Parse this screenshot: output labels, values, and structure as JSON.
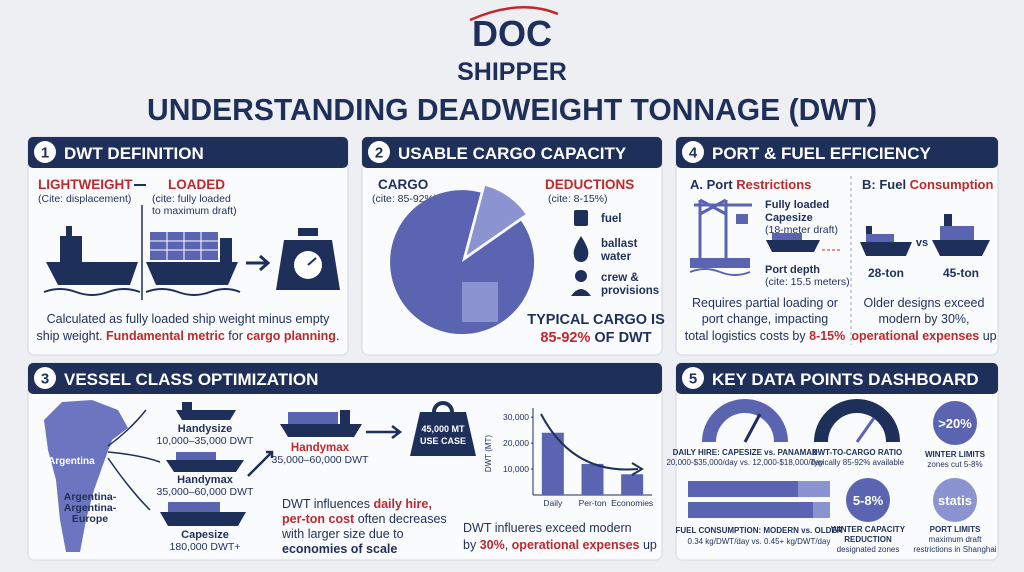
{
  "logo": {
    "top": "DOC",
    "bottom": "SHIPPER"
  },
  "title": "UNDERSTANDING DEADWEIGHT TONNAGE (DWT)",
  "panel1": {
    "number": "1",
    "title": "DWT DEFINITION",
    "lightweight": "LIGHTWEIGHT",
    "lightweight_cite": "(Cite: displacement)",
    "loaded": "LOADED",
    "loaded_cite": [
      "(cite: fully loaded",
      "to maximum draft)"
    ],
    "text": [
      "Calculated as fully loaded ship weight minus empty",
      "ship weight. ",
      "Fundamental metric",
      " for ",
      "cargo planning",
      "."
    ]
  },
  "panel2": {
    "number": "2",
    "title": "USABLE CARGO CAPACITY",
    "cargo": "CARGO",
    "cargo_cite": "(cite: 85-92%)",
    "deductions": "DEDUCTIONS",
    "deductions_cite": "(cite: 8-15%)",
    "items": [
      [
        "fuel"
      ],
      [
        "ballast",
        "water"
      ],
      [
        "crew &",
        "provisions"
      ]
    ],
    "typical": [
      "TYPICAL CARGO IS",
      "85-92%",
      " OF DWT"
    ]
  },
  "panel3": {
    "number": "3",
    "title": "VESSEL CLASS OPTIMIZATION",
    "map_label": "Argentina",
    "route": [
      "Argentina-",
      "Argentina-",
      "Europe"
    ],
    "classes": [
      {
        "name": "Handysize",
        "range": "10,000–35,000 DWT"
      },
      {
        "name": "Handymax",
        "range": "35,000–60,000 DWT"
      },
      {
        "name": "Capesize",
        "range": "180,000 DWT+"
      }
    ],
    "featured": {
      "name": "Handymax",
      "range": "35,000–60,000 DWT"
    },
    "weight": [
      "45,000 MT",
      "USE CASE"
    ],
    "text": [
      "DWT influences ",
      "daily hire,",
      "per-ton cost",
      " often decreases",
      "with larger size due to",
      "economies of scale"
    ],
    "chart": {
      "type": "bar",
      "ylabel": "DWT (MT)",
      "categories": [
        "Daily",
        "Per-ton",
        "Economies"
      ],
      "values": [
        24000,
        12000,
        8000
      ],
      "ylim": [
        0,
        32000
      ],
      "yticks": [
        {
          "value": 10000,
          "label": "10,000"
        },
        {
          "value": 20000,
          "label": "20,000"
        },
        {
          "value": 30000,
          "label": "30,000"
        }
      ],
      "color": "#5a64b0"
    },
    "bottom": [
      "DWT influeres exceed modern",
      "by ",
      "30%",
      ", ",
      "operational expenses",
      " up"
    ]
  },
  "panel4": {
    "number": "4",
    "title": "PORT & FUEL EFFICIENCY",
    "a": [
      "A. Port ",
      "Restrictions"
    ],
    "capesize": [
      "Fully loaded",
      "Capesize",
      "(18-meter draft)"
    ],
    "port_depth": [
      "Port depth",
      "(cite: 15.5 meters)"
    ],
    "a_text": [
      "Requires partial loading or",
      "port change, impacting",
      "total logistics costs by ",
      "8-15%"
    ],
    "b": [
      "B: Fuel ",
      "Consumption"
    ],
    "vs": "vs",
    "ships": [
      "28-ton",
      "45-ton"
    ],
    "b_text": [
      "Older designs exceed",
      "modern by 30%,",
      "operational expenses",
      " up"
    ]
  },
  "panel5": {
    "number": "5",
    "title": "KEY DATA POINTS DASHBOARD",
    "hire": [
      "DAILY HIRE: CAPESIZE vs. PANAMAX",
      "20,000-$35,000/day vs. 12,000-$18,000/day"
    ],
    "ratio": [
      "DWT-TO-CARGO RATIO",
      "Typically 85-92% available"
    ],
    "winter": {
      "badge": ">20%",
      "lines": [
        "WINTER LIMITS",
        "zones cut 5-8%"
      ]
    },
    "fuel": [
      "FUEL CONSUMPTION: MODERN vs. OLDER",
      "0.34 kg/DWT/day vs. 0.45+ kg/DWT/day"
    ],
    "capacity": {
      "badge": "5-8%",
      "lines": [
        "WINTER CAPACITY",
        "REDUCTION",
        "designated zones"
      ]
    },
    "port": {
      "badge": "statis",
      "lines": [
        "PORT LIMITS",
        "maximum draft",
        "restrictions in Shanghai"
      ]
    }
  }
}
